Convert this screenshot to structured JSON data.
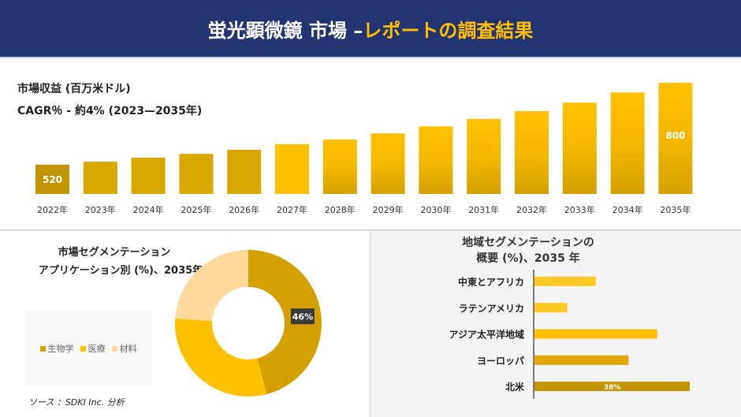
{
  "header": {
    "title_main": "蛍光顕微鏡 市場 –",
    "title_accent": "レポートの調査結果"
  },
  "revenue": {
    "title": "市場収益 (百万米ドル)",
    "cagr": "CAGR％ - 約4% (2023—2035年)"
  },
  "chart_data": [
    {
      "type": "bar",
      "title": "市場収益 (百万米ドル)",
      "categories": [
        "2022年",
        "2023年",
        "2024年",
        "2025年",
        "2026年",
        "2027年",
        "2028年",
        "2029年",
        "2030年",
        "2031年",
        "2032年",
        "2033年",
        "2034年",
        "2035年"
      ],
      "values": [
        520,
        530,
        544,
        557,
        571,
        590,
        606,
        627,
        651,
        676,
        703,
        732,
        767,
        800
      ],
      "data_labels": {
        "0": "520",
        "13": "800"
      },
      "ylim": [
        420,
        800
      ],
      "grid": false,
      "colors": {
        "first": "#c39300",
        "mid": "#d9a800",
        "highlight": "#ffc000"
      }
    },
    {
      "type": "pie",
      "title": "市場セグメンテーション アプリケーション別 (%)、2035年",
      "donut": true,
      "categories": [
        "生物学",
        "医療",
        "材料"
      ],
      "values": [
        46,
        30,
        24
      ],
      "data_labels": [
        "46%",
        "",
        ""
      ],
      "colors": [
        "#d4a000",
        "#ffc000",
        "#ffd99a"
      ],
      "legend": "left"
    },
    {
      "type": "bar",
      "orientation": "horizontal",
      "title": "地域セグメンテーションの 概要 (%)、2035 年",
      "categories": [
        "中東とアフリカ",
        "ラテンアメリカ",
        "アジア太平洋地域",
        "ヨーロッパ",
        "北米"
      ],
      "values": [
        15,
        8,
        30,
        23,
        38
      ],
      "data_labels": [
        "",
        "",
        "",
        "",
        "38%"
      ],
      "colors": [
        "#ffc822",
        "#ffc822",
        "#ffc000",
        "#e0aa00",
        "#c39300"
      ]
    }
  ],
  "segment": {
    "title_line1": "市場セグメンテーション",
    "title_line2": "アプリケーション別 (%)、2035年"
  },
  "region": {
    "title_line1": "地域セグメンテーションの",
    "title_line2": "概要 (%)、2035 年"
  },
  "source": "ソース ：SDKI Inc. 分析"
}
